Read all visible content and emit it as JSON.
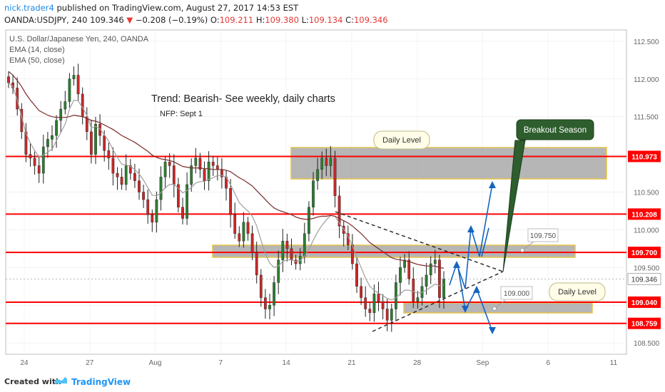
{
  "header": {
    "author": "nick.trader4",
    "published_text": "published on TradingView.com, August 27, 2017 14:53 EST",
    "symbol": "OANDA:USDJPY, 240",
    "last": "109.346",
    "change_arrow": "▼",
    "change": "−0.208 (−0.19%)",
    "o_label": "O:",
    "o": "109.211",
    "h_label": "H:",
    "h": "109.380",
    "l_label": "L:",
    "l": "109.134",
    "c_label": "C:",
    "c": "109.346"
  },
  "legend": {
    "title": "U.S. Dollar/Japanese Yen, 240, OANDA",
    "ema14": "EMA (14, close)",
    "ema50": "EMA (50, close)"
  },
  "annotations": {
    "trend": "Trend: Bearish- See weekly, daily charts",
    "nfp": "NFP: Sept 1",
    "daily_level_top": "Daily Level",
    "daily_level_bottom": "Daily Level",
    "breakout": "Breakout Season",
    "callout_109750": "109.750",
    "callout_109000": "109.000"
  },
  "footer": {
    "created_with": "Created with",
    "brand": "TradingView"
  },
  "colors": {
    "up": "#2e7d32",
    "down": "#c62828",
    "wick": "#222222",
    "level_line": "#ff0000",
    "ema14": "#9e9e9e",
    "ema50": "#7b2b2b",
    "zone_fill": "#9e9e9e",
    "zone_border": "#e6c24a",
    "arrow": "#1565c0",
    "breakout_fill": "#2e5e2e"
  },
  "chart_data": {
    "type": "candlestick",
    "y_ticks": [
      "112.500",
      "112.000",
      "111.500",
      "111.000",
      "110.500",
      "110.000",
      "109.500",
      "109.000",
      "108.500"
    ],
    "x_ticks": [
      "24",
      "27",
      "Aug",
      "7",
      "14",
      "21",
      "28",
      "Sep",
      "6",
      "11"
    ],
    "ylim": [
      108.35,
      112.65
    ],
    "levels": [
      {
        "label": "110.973",
        "value": 110.973
      },
      {
        "label": "110.208",
        "value": 110.208
      },
      {
        "label": "109.700",
        "value": 109.7
      },
      {
        "label": "109.040",
        "value": 109.04
      },
      {
        "label": "108.759",
        "value": 108.759
      }
    ],
    "current_price": {
      "label": "109.346",
      "value": 109.346
    },
    "closes": [
      111.95,
      111.88,
      111.6,
      111.3,
      111.0,
      110.95,
      110.85,
      110.75,
      111.1,
      111.2,
      111.25,
      111.45,
      111.6,
      111.7,
      112.0,
      112.05,
      111.8,
      111.5,
      111.3,
      111.0,
      111.4,
      111.25,
      111.05,
      110.95,
      110.75,
      110.7,
      110.6,
      110.85,
      110.75,
      110.65,
      110.5,
      110.4,
      110.2,
      110.1,
      110.4,
      110.7,
      110.9,
      110.85,
      110.6,
      110.3,
      110.15,
      110.6,
      110.85,
      110.95,
      110.8,
      110.65,
      110.9,
      110.85,
      110.8,
      110.7,
      110.55,
      110.2,
      109.95,
      109.85,
      110.1,
      109.95,
      109.7,
      109.4,
      109.1,
      108.95,
      109.0,
      109.3,
      109.6,
      109.85,
      109.75,
      109.6,
      109.55,
      109.65,
      109.95,
      110.3,
      110.65,
      110.8,
      110.95,
      110.85,
      110.95,
      110.45,
      110.05,
      109.95,
      109.8,
      109.55,
      109.25,
      109.1,
      108.95,
      108.9,
      109.15,
      109.05,
      108.95,
      108.8,
      108.95,
      109.3,
      109.5,
      109.6,
      109.35,
      109.05,
      109.1,
      109.25,
      109.4,
      109.55,
      109.6,
      109.1,
      109.346
    ],
    "ema14": [
      111.95,
      111.9,
      111.72,
      111.5,
      111.28,
      111.15,
      111.05,
      110.97,
      110.99,
      111.03,
      111.07,
      111.18,
      111.29,
      111.4,
      111.6,
      111.72,
      111.71,
      111.62,
      111.52,
      111.35,
      111.37,
      111.34,
      111.26,
      111.18,
      111.06,
      110.96,
      110.87,
      110.86,
      110.84,
      110.8,
      110.74,
      110.66,
      110.56,
      110.46,
      110.45,
      110.49,
      110.56,
      110.6,
      110.6,
      110.55,
      110.49,
      110.52,
      110.56,
      110.62,
      110.64,
      110.64,
      110.67,
      110.69,
      110.72,
      110.72,
      110.7,
      110.6,
      110.48,
      110.36,
      110.3,
      110.25,
      110.18,
      110.05,
      109.86,
      109.68,
      109.56,
      109.5,
      109.52,
      109.58,
      109.6,
      109.6,
      109.58,
      109.59,
      109.65,
      109.74,
      109.86,
      109.97,
      110.06,
      110.13,
      110.19,
      110.18,
      110.09,
      110.01,
      109.91,
      109.79,
      109.64,
      109.5,
      109.36,
      109.25,
      109.2,
      109.16,
      109.13,
      109.09,
      109.07,
      109.1,
      109.15,
      109.2,
      109.2,
      109.18,
      109.16,
      109.17,
      109.2,
      109.24,
      109.28,
      109.26,
      109.27
    ],
    "ema50": [
      112.1,
      112.05,
      111.98,
      111.9,
      111.8,
      111.72,
      111.65,
      111.58,
      111.55,
      111.52,
      111.5,
      111.49,
      111.49,
      111.49,
      111.5,
      111.52,
      111.51,
      111.5,
      111.48,
      111.45,
      111.44,
      111.42,
      111.39,
      111.36,
      111.33,
      111.29,
      111.25,
      111.22,
      111.19,
      111.16,
      111.12,
      111.08,
      111.04,
      110.99,
      110.96,
      110.94,
      110.93,
      110.92,
      110.9,
      110.87,
      110.84,
      110.83,
      110.82,
      110.82,
      110.82,
      110.81,
      110.81,
      110.8,
      110.8,
      110.8,
      110.79,
      110.77,
      110.73,
      110.69,
      110.66,
      110.62,
      110.58,
      110.52,
      110.46,
      110.4,
      110.34,
      110.29,
      110.26,
      110.24,
      110.22,
      110.2,
      110.17,
      110.15,
      110.14,
      110.14,
      110.15,
      110.17,
      110.18,
      110.18,
      110.19,
      110.18,
      110.15,
      110.12,
      110.09,
      110.05,
      110.0,
      109.95,
      109.89,
      109.83,
      109.79,
      109.75,
      109.71,
      109.67,
      109.63,
      109.61,
      109.6,
      109.59,
      109.58,
      109.56,
      109.54,
      109.53,
      109.52,
      109.52,
      109.52,
      109.5,
      109.49
    ]
  }
}
